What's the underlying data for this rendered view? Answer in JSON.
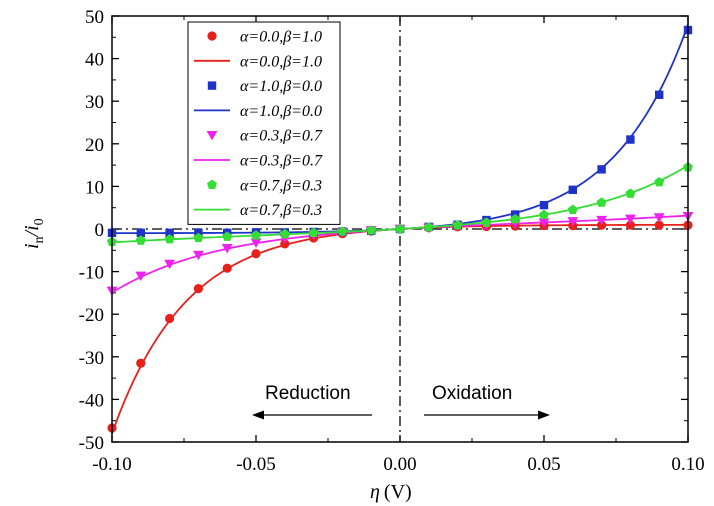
{
  "chart_data": {
    "type": "line",
    "xlabel_symbol": "η",
    "xlabel_unit": "(V)",
    "ylabel_main": "i",
    "ylabel_sub1": "n",
    "ylabel_div": "/",
    "ylabel_main2": "i",
    "ylabel_sub2": "0",
    "xlim": [
      -0.1,
      0.1
    ],
    "ylim": [
      -50,
      50
    ],
    "x_ticks": [
      "-0.10",
      "-0.05",
      "0.00",
      "0.05",
      "0.10"
    ],
    "y_ticks": [
      "-50",
      "-40",
      "-30",
      "-20",
      "-10",
      "0",
      "10",
      "20",
      "30",
      "40",
      "50"
    ],
    "x_tick_values": [
      -0.1,
      -0.05,
      0.0,
      0.05,
      0.1
    ],
    "y_tick_values": [
      -50,
      -40,
      -30,
      -20,
      -10,
      0,
      10,
      20,
      30,
      40,
      50
    ],
    "grid": false,
    "legend_position": "top-left",
    "x_points": [
      -0.1,
      -0.09,
      -0.08,
      -0.07,
      -0.06,
      -0.05,
      -0.04,
      -0.03,
      -0.02,
      -0.01,
      0.0,
      0.01,
      0.02,
      0.03,
      0.04,
      0.05,
      0.06,
      0.07,
      0.08,
      0.09,
      0.1
    ],
    "series": [
      {
        "alpha": "0.0",
        "beta": "1.0",
        "color": "#e8201b",
        "marker": "circle",
        "points": [
          -46.7,
          -31.5,
          -21.0,
          -14.0,
          -9.2,
          -5.8,
          -3.5,
          -2.1,
          -1.1,
          -0.5,
          0.0,
          0.3,
          0.5,
          0.6,
          0.7,
          0.8,
          0.8,
          0.9,
          0.9,
          0.9,
          0.9
        ]
      },
      {
        "alpha": "1.0",
        "beta": "0.0",
        "color": "#1f33c8",
        "marker": "square",
        "points": [
          -0.9,
          -0.9,
          -0.9,
          -0.9,
          -0.9,
          -0.8,
          -0.8,
          -0.7,
          -0.6,
          -0.4,
          0.0,
          0.5,
          1.0,
          2.1,
          3.4,
          5.6,
          9.2,
          14.0,
          21.0,
          31.5,
          46.7
        ]
      },
      {
        "alpha": "0.3",
        "beta": "0.7",
        "color": "#ee22ee",
        "marker": "triangle-down",
        "points": [
          -14.5,
          -11.0,
          -8.2,
          -6.1,
          -4.5,
          -3.2,
          -2.2,
          -1.4,
          -0.8,
          -0.3,
          0.0,
          0.3,
          0.6,
          0.9,
          1.2,
          1.5,
          1.8,
          2.1,
          2.4,
          2.7,
          3.0
        ]
      },
      {
        "alpha": "0.7",
        "beta": "0.3",
        "color": "#33dd33",
        "marker": "pentagon",
        "points": [
          -3.0,
          -2.7,
          -2.4,
          -2.1,
          -1.8,
          -1.5,
          -1.2,
          -0.9,
          -0.6,
          -0.3,
          0.0,
          0.4,
          0.9,
          1.5,
          2.3,
          3.3,
          4.5,
          6.2,
          8.3,
          11.0,
          14.5
        ]
      }
    ]
  },
  "legend": {
    "items": [
      {
        "alpha": "α=0.0,",
        "beta": "β=1.0",
        "kind": "marker",
        "series": 0
      },
      {
        "alpha": "α=0.0,",
        "beta": "β=1.0",
        "kind": "line",
        "series": 0
      },
      {
        "alpha": "α=1.0,",
        "beta": "β=0.0",
        "kind": "marker",
        "series": 1
      },
      {
        "alpha": "α=1.0,",
        "beta": "β=0.0",
        "kind": "line",
        "series": 1
      },
      {
        "alpha": "α=0.3,",
        "beta": "β=0.7",
        "kind": "marker",
        "series": 2
      },
      {
        "alpha": "α=0.3,",
        "beta": "β=0.7",
        "kind": "line",
        "series": 2
      },
      {
        "alpha": "α=0.7,",
        "beta": "β=0.3",
        "kind": "marker",
        "series": 3
      },
      {
        "alpha": "α=0.7,",
        "beta": "β=0.3",
        "kind": "line",
        "series": 3
      }
    ]
  },
  "annotations": {
    "reduction": "Reduction",
    "oxidation": "Oxidation"
  }
}
